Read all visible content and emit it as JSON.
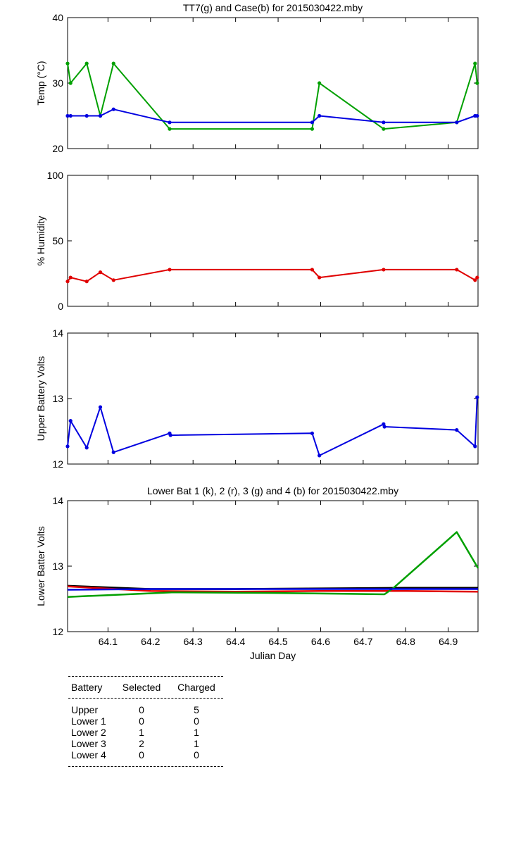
{
  "chart_data": [
    {
      "type": "line",
      "title": "TT7(g) and Case(b) for 2015030422.mby",
      "xlabel": "",
      "ylabel": "Temp  (°C)",
      "xlim": [
        64.005,
        64.97
      ],
      "ylim": [
        20,
        40
      ],
      "yticks": [
        20,
        30,
        40
      ],
      "series": [
        {
          "color": "#00a000",
          "x": [
            64.005,
            64.012,
            64.05,
            64.082,
            64.113,
            64.245,
            64.58,
            64.597,
            64.748,
            64.92,
            64.963,
            64.968
          ],
          "y": [
            33,
            30,
            33,
            25,
            33,
            23,
            23,
            30,
            23,
            24,
            33,
            30
          ]
        },
        {
          "color": "#0000e0",
          "x": [
            64.005,
            64.012,
            64.05,
            64.082,
            64.113,
            64.245,
            64.58,
            64.597,
            64.748,
            64.92,
            64.963,
            64.968
          ],
          "y": [
            25,
            25,
            25,
            25,
            26,
            24,
            24,
            25,
            24,
            24,
            25,
            25
          ]
        }
      ]
    },
    {
      "type": "line",
      "title": "",
      "xlabel": "",
      "ylabel": "% Humidity",
      "xlim": [
        64.005,
        64.97
      ],
      "ylim": [
        0,
        100
      ],
      "yticks": [
        0,
        50,
        100
      ],
      "series": [
        {
          "color": "#e00000",
          "x": [
            64.005,
            64.012,
            64.05,
            64.082,
            64.113,
            64.245,
            64.58,
            64.597,
            64.748,
            64.92,
            64.963,
            64.968
          ],
          "y": [
            19,
            22,
            19,
            26,
            20,
            28,
            28,
            22,
            28,
            28,
            20,
            22
          ]
        }
      ]
    },
    {
      "type": "line",
      "title": "",
      "xlabel": "",
      "ylabel": "Upper Battery Volts",
      "xlim": [
        64.005,
        64.97
      ],
      "ylim": [
        12,
        14
      ],
      "yticks": [
        12,
        13,
        14
      ],
      "series": [
        {
          "color": "#0000e0",
          "x": [
            64.005,
            64.012,
            64.05,
            64.082,
            64.113,
            64.245,
            64.247,
            64.58,
            64.597,
            64.748,
            64.75,
            64.92,
            64.963,
            64.968
          ],
          "y": [
            12.27,
            12.66,
            12.25,
            12.87,
            12.18,
            12.47,
            12.44,
            12.47,
            12.13,
            12.61,
            12.57,
            12.52,
            12.27,
            13.02
          ]
        }
      ]
    },
    {
      "type": "line",
      "title": "Lower Bat 1 (k), 2 (r), 3 (g) and 4 (b) for 2015030422.mby",
      "xlabel": "Julian Day",
      "ylabel": "Lower Batter Volts",
      "xlim": [
        64.005,
        64.97
      ],
      "ylim": [
        12,
        14
      ],
      "yticks": [
        12,
        13,
        14
      ],
      "xticks": [
        "64.1",
        "64.2",
        "64.3",
        "64.4",
        "64.5",
        "64.6",
        "64.7",
        "64.8",
        "64.9"
      ],
      "series": [
        {
          "color": "#000000",
          "x": [
            64.005,
            64.2,
            64.4,
            64.6,
            64.8,
            64.97
          ],
          "y": [
            12.7,
            12.65,
            12.65,
            12.66,
            12.67,
            12.67
          ]
        },
        {
          "color": "#e00000",
          "x": [
            64.005,
            64.2,
            64.4,
            64.6,
            64.8,
            64.97
          ],
          "y": [
            12.69,
            12.62,
            12.61,
            12.62,
            12.62,
            12.61
          ]
        },
        {
          "color": "#00a000",
          "x": [
            64.005,
            64.25,
            64.5,
            64.75,
            64.77,
            64.92,
            64.97
          ],
          "y": [
            12.53,
            12.6,
            12.59,
            12.57,
            12.66,
            13.52,
            12.97
          ]
        },
        {
          "color": "#0000e0",
          "x": [
            64.005,
            64.2,
            64.4,
            64.6,
            64.8,
            64.97
          ],
          "y": [
            12.64,
            12.65,
            12.65,
            12.65,
            12.65,
            12.65
          ]
        }
      ]
    }
  ],
  "stats": {
    "headers": [
      "Battery",
      "Selected",
      "Charged"
    ],
    "rows": [
      [
        "Upper",
        "0",
        "5"
      ],
      [
        "Lower 1",
        "0",
        "0"
      ],
      [
        "Lower 2",
        "1",
        "1"
      ],
      [
        "Lower 3",
        "2",
        "1"
      ],
      [
        "Lower 4",
        "0",
        "0"
      ]
    ]
  }
}
